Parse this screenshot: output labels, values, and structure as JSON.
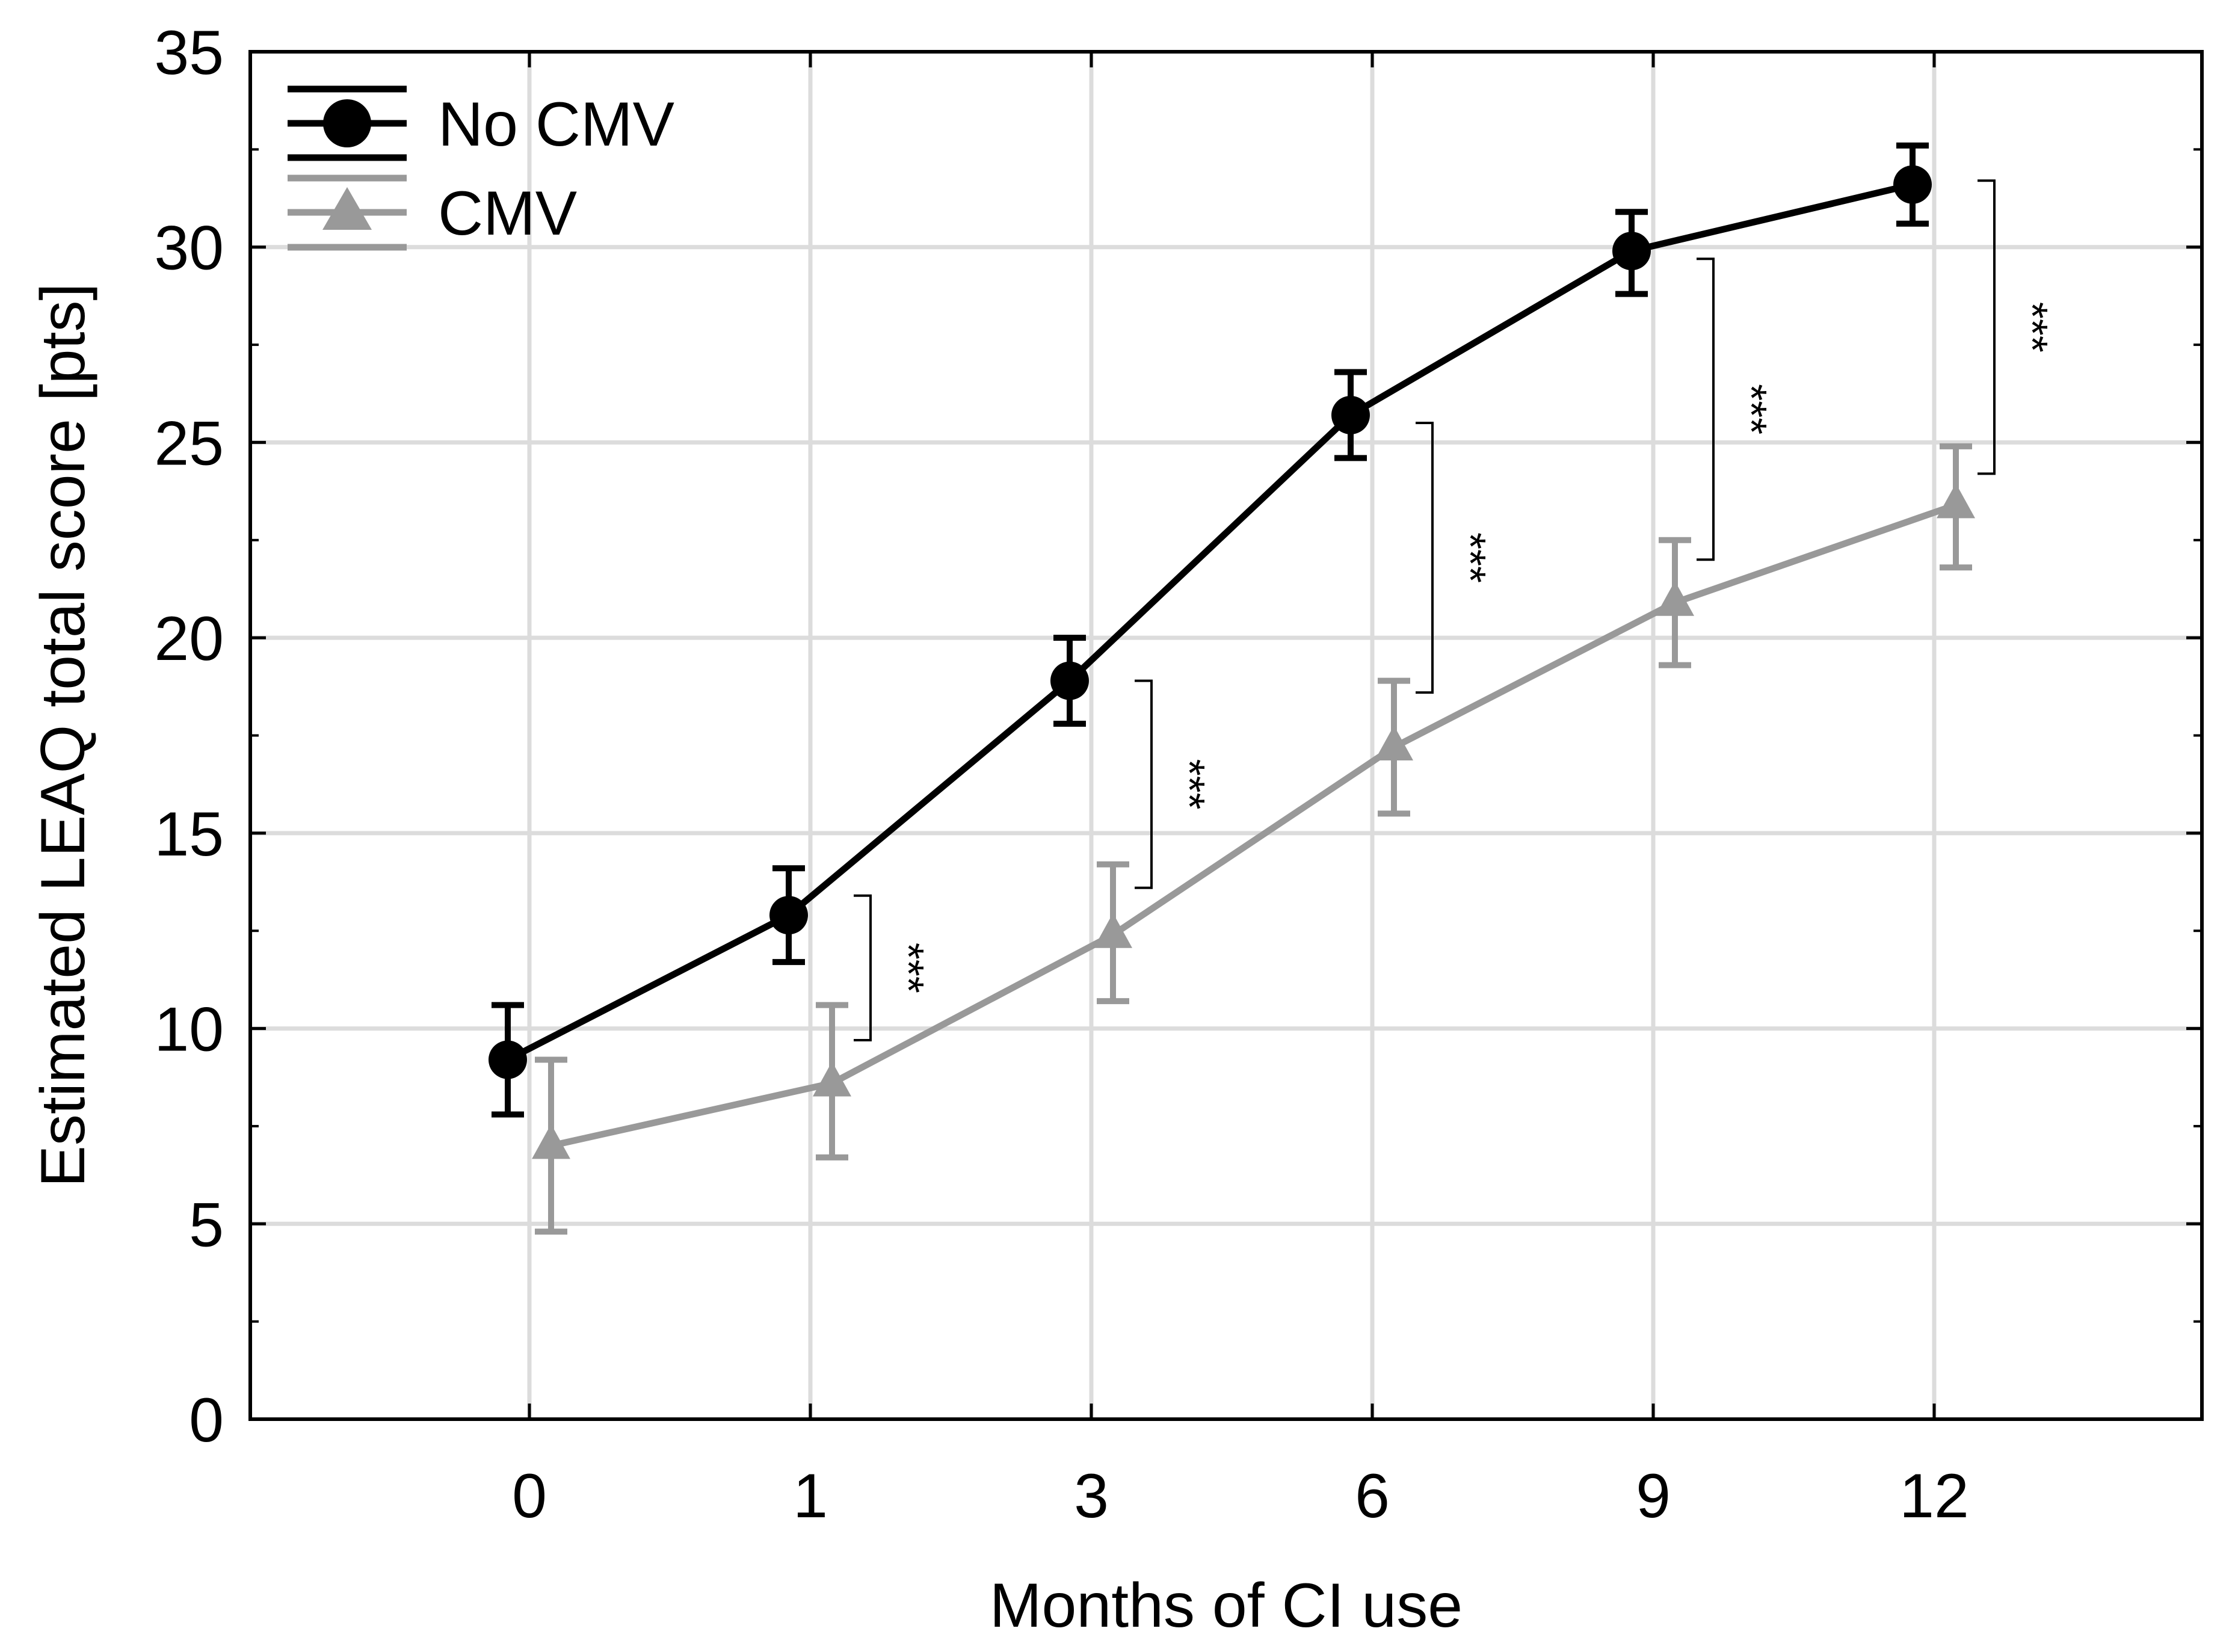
{
  "chart_data": {
    "type": "line",
    "title": "",
    "xlabel": "Months of CI use",
    "ylabel": "Estimated LEAQ total score [pts]",
    "categories": [
      "0",
      "1",
      "3",
      "6",
      "9",
      "12"
    ],
    "ylim": [
      0,
      35
    ],
    "yticks": [
      "0",
      "5",
      "10",
      "15",
      "20",
      "25",
      "30",
      "35"
    ],
    "grid": true,
    "legend_position": "top-left",
    "series": [
      {
        "name": "No CMV",
        "marker": "circle",
        "color": "#000000",
        "values": [
          9.2,
          12.9,
          18.9,
          25.7,
          29.9,
          31.6
        ],
        "lower": [
          7.8,
          11.7,
          17.8,
          24.6,
          28.8,
          30.6
        ],
        "upper": [
          10.6,
          14.1,
          20.0,
          26.8,
          30.9,
          32.6
        ]
      },
      {
        "name": "CMV",
        "marker": "triangle",
        "color": "#999999",
        "values": [
          7.0,
          8.6,
          12.4,
          17.2,
          20.9,
          23.4
        ],
        "lower": [
          4.8,
          6.7,
          10.7,
          15.5,
          19.3,
          21.8
        ],
        "upper": [
          9.2,
          10.6,
          14.2,
          18.9,
          22.5,
          24.9
        ]
      }
    ],
    "significance": [
      {
        "category": "1",
        "label": "***",
        "low": 9.7,
        "high": 13.4
      },
      {
        "category": "3",
        "label": "***",
        "low": 13.6,
        "high": 18.9
      },
      {
        "category": "6",
        "label": "***",
        "low": 18.6,
        "high": 25.5
      },
      {
        "category": "9",
        "label": "***",
        "low": 22.0,
        "high": 29.7
      },
      {
        "category": "12",
        "label": "***",
        "low": 24.2,
        "high": 31.7
      }
    ]
  }
}
